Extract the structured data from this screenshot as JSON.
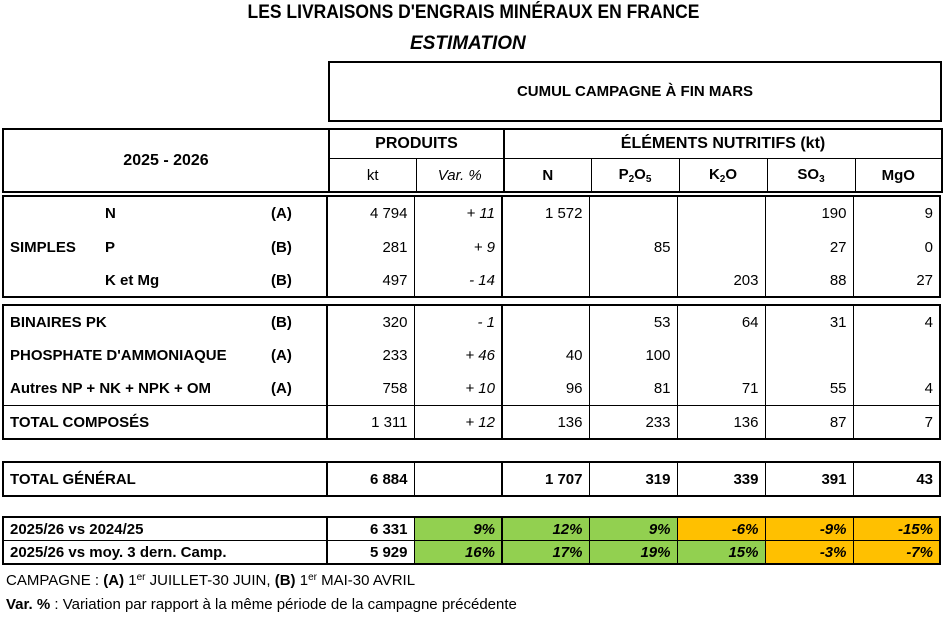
{
  "title": "LES LIVRAISONS D'ENGRAIS MINÉRAUX EN FRANCE",
  "subtitle": "ESTIMATION",
  "cumul": "CUMUL CAMPAGNE À FIN MARS",
  "header": {
    "campaign": "2025 - 2026",
    "produits": "PRODUITS",
    "elements": "ÉLÉMENTS NUTRITIFS (kt)",
    "kt": "kt",
    "var": "Var. %",
    "n": "N",
    "p": "P",
    "p_sub": "2",
    "p_o": "O",
    "p_sub2": "5",
    "k": "K",
    "k_sub": "2",
    "k_o": "O",
    "s": "SO",
    "s_sub": "3",
    "mg": "MgO"
  },
  "simples": {
    "label": "SIMPLES",
    "rows": [
      {
        "name": "N",
        "type": "(A)",
        "kt": "4 794",
        "var": "+ 11",
        "n": "1 572",
        "p": "",
        "k": "",
        "so3": "190",
        "mgo": "9"
      },
      {
        "name": "P",
        "type": "(B)",
        "kt": "281",
        "var": "+ 9",
        "n": "",
        "p": "85",
        "k": "",
        "so3": "27",
        "mgo": "0"
      },
      {
        "name": "K et Mg",
        "type": "(B)",
        "kt": "497",
        "var": "- 14",
        "n": "",
        "p": "",
        "k": "203",
        "so3": "88",
        "mgo": "27"
      }
    ]
  },
  "composes": [
    {
      "name": "BINAIRES PK",
      "type": "(B)",
      "kt": "320",
      "var": "- 1",
      "n": "",
      "p": "53",
      "k": "64",
      "so3": "31",
      "mgo": "4"
    },
    {
      "name": "PHOSPHATE D'AMMONIAQUE",
      "type": "(A)",
      "kt": "233",
      "var": "+ 46",
      "n": "40",
      "p": "100",
      "k": "",
      "so3": "",
      "mgo": ""
    },
    {
      "name": "Autres NP + NK + NPK + OM",
      "type": "(A)",
      "kt": "758",
      "var": "+ 10",
      "n": "96",
      "p": "81",
      "k": "71",
      "so3": "55",
      "mgo": "4"
    }
  ],
  "total_composes": {
    "name": "TOTAL COMPOSÉS",
    "kt": "1 311",
    "var": "+ 12",
    "n": "136",
    "p": "233",
    "k": "136",
    "so3": "87",
    "mgo": "7"
  },
  "total_general": {
    "name": "TOTAL GÉNÉRAL",
    "kt": "6 884",
    "var": "",
    "n": "1 707",
    "p": "319",
    "k": "339",
    "so3": "391",
    "mgo": "43"
  },
  "comparisons": [
    {
      "name": "2025/26 vs 2024/25",
      "kt": "6 331",
      "var": "9%",
      "n": "12%",
      "p": "9%",
      "k": "-6%",
      "so3": "-9%",
      "mgo": "-15%",
      "colors": [
        "green",
        "green",
        "green",
        "orange",
        "orange",
        "orange"
      ]
    },
    {
      "name": "2025/26 vs moy. 3 dern. Camp.",
      "kt": "5 929",
      "var": "16%",
      "n": "17%",
      "p": "19%",
      "k": "15%",
      "so3": "-3%",
      "mgo": "-7%",
      "colors": [
        "green",
        "green",
        "green",
        "green",
        "orange",
        "orange"
      ]
    }
  ],
  "colors": {
    "green": "#92d050",
    "orange": "#ffc000"
  },
  "notes": {
    "campagne_label": "CAMPAGNE : ",
    "a": "(A)",
    "a_text": " 1",
    "a_sup": "er",
    "a_rest": " JUILLET-30 JUIN, ",
    "b": "(B)",
    "b_text": " 1",
    "b_sup": "er",
    "b_rest": " MAI-30 AVRIL",
    "var_label": "Var. %",
    "var_text": " : Variation par rapport à la même période de la campagne précédente"
  }
}
